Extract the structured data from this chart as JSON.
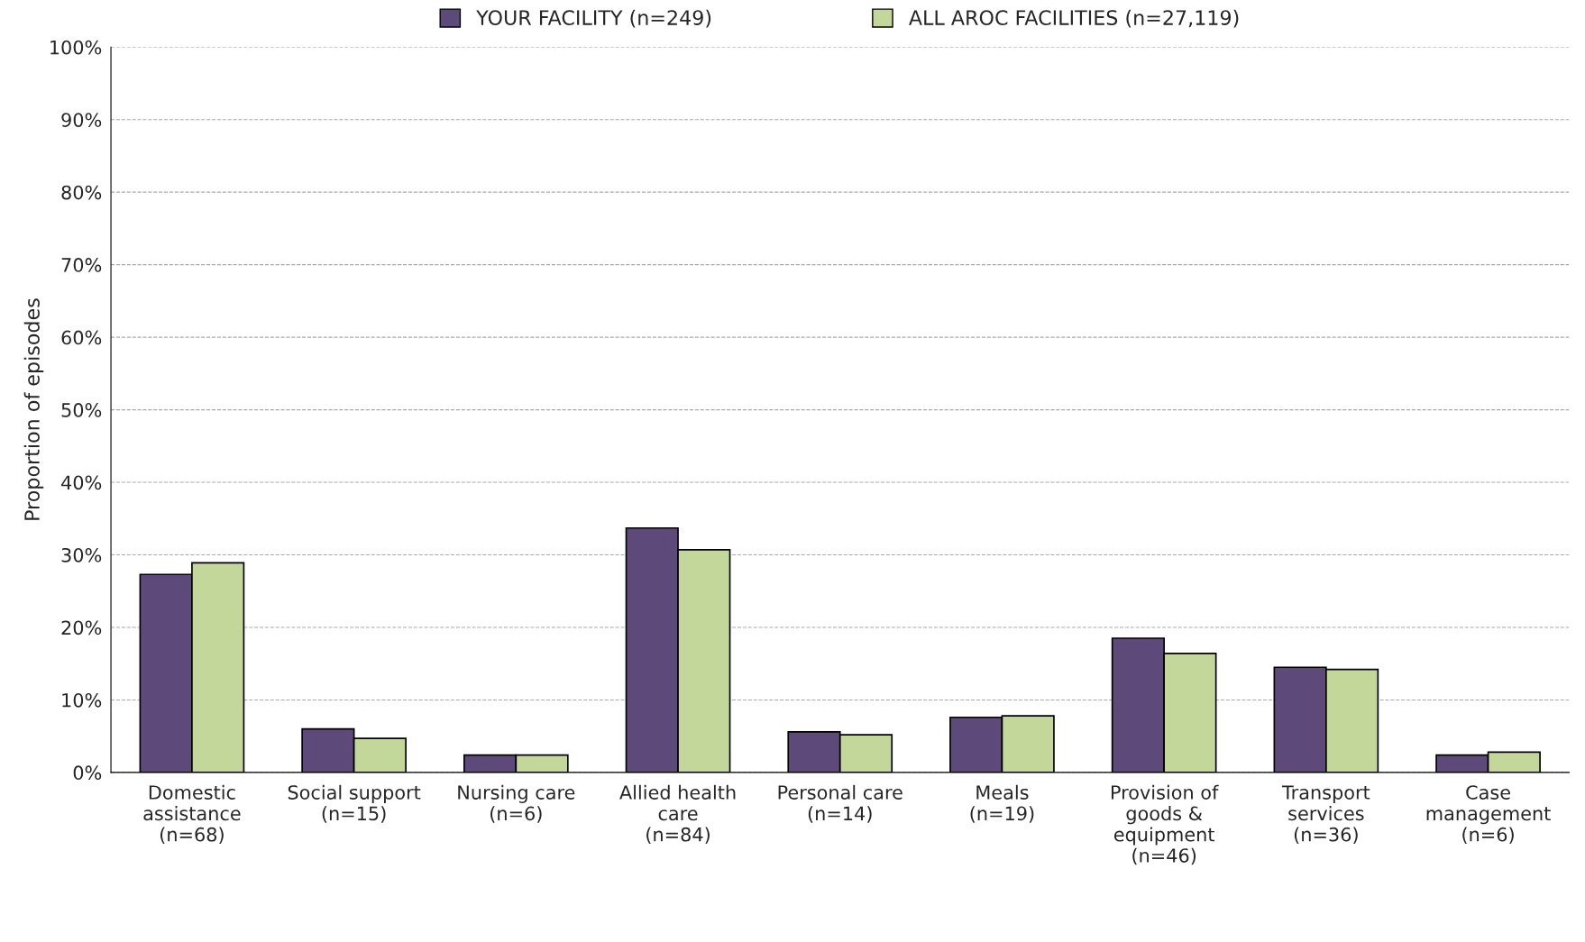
{
  "chart_data": {
    "type": "bar",
    "ylabel": "Proportion of episodes",
    "categories": [
      "Domestic\nassistance\n(n=68)",
      "Social support\n(n=15)",
      "Nursing care\n(n=6)",
      "Allied health\ncare\n(n=84)",
      "Personal care\n(n=14)",
      "Meals\n(n=19)",
      "Provision of\ngoods &\nequipment\n(n=46)",
      "Transport\nservices\n(n=36)",
      "Case\nmanagement\n(n=6)"
    ],
    "series": [
      {
        "name": "YOUR FACILITY (n=249)",
        "color": "#5e4a7a",
        "values": [
          27.3,
          6.0,
          2.4,
          33.7,
          5.6,
          7.6,
          18.5,
          14.5,
          2.4
        ]
      },
      {
        "name": "ALL AROC FACILITIES (n=27,119)",
        "color": "#c4d79b",
        "values": [
          28.9,
          4.7,
          2.4,
          30.7,
          5.2,
          7.8,
          16.4,
          14.2,
          2.8
        ]
      }
    ],
    "ylim": [
      0,
      100
    ],
    "yticks": [
      {
        "value": 0,
        "label": "0%"
      },
      {
        "value": 10,
        "label": "10%"
      },
      {
        "value": 20,
        "label": "20%"
      },
      {
        "value": 30,
        "label": "30%"
      },
      {
        "value": 40,
        "label": "40%"
      },
      {
        "value": 50,
        "label": "50%"
      },
      {
        "value": 60,
        "label": "60%"
      },
      {
        "value": 70,
        "label": "70%"
      },
      {
        "value": 80,
        "label": "80%"
      },
      {
        "value": 90,
        "label": "90%"
      },
      {
        "value": 100,
        "label": "100%"
      }
    ],
    "grid": "y",
    "legend": "top"
  }
}
